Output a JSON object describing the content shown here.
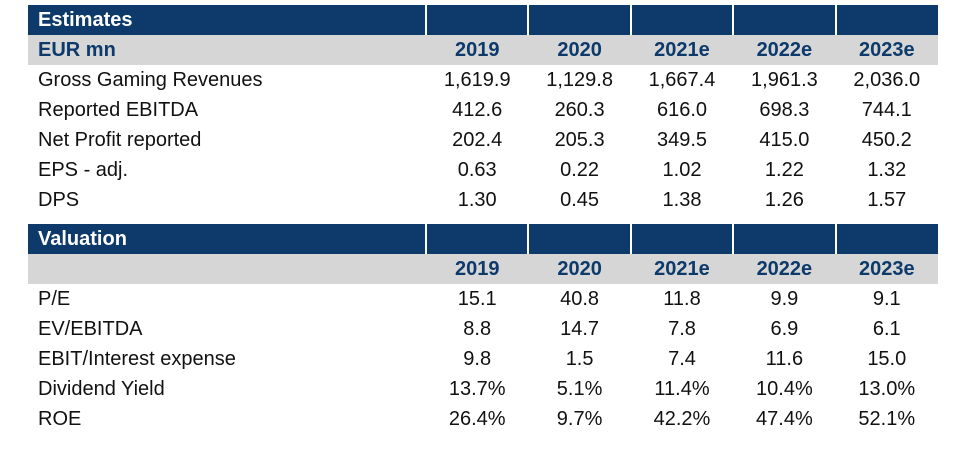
{
  "estimates": {
    "title": "Estimates",
    "header_label": "EUR mn",
    "years": [
      "2019",
      "2020",
      "2021e",
      "2022e",
      "2023e"
    ],
    "rows": [
      {
        "label": "Gross Gaming Revenues",
        "values": [
          "1,619.9",
          "1,129.8",
          "1,667.4",
          "1,961.3",
          "2,036.0"
        ]
      },
      {
        "label": "Reported EBITDA",
        "values": [
          "412.6",
          "260.3",
          "616.0",
          "698.3",
          "744.1"
        ]
      },
      {
        "label": "Net Profit reported",
        "values": [
          "202.4",
          "205.3",
          "349.5",
          "415.0",
          "450.2"
        ]
      },
      {
        "label": "EPS - adj.",
        "values": [
          "0.63",
          "0.22",
          "1.02",
          "1.22",
          "1.32"
        ]
      },
      {
        "label": "DPS",
        "values": [
          "1.30",
          "0.45",
          "1.38",
          "1.26",
          "1.57"
        ]
      }
    ]
  },
  "valuation": {
    "title": "Valuation",
    "header_label": "",
    "years": [
      "2019",
      "2020",
      "2021e",
      "2022e",
      "2023e"
    ],
    "rows": [
      {
        "label": "P/E",
        "values": [
          "15.1",
          "40.8",
          "11.8",
          "9.9",
          "9.1"
        ]
      },
      {
        "label": "EV/EBITDA",
        "values": [
          "8.8",
          "14.7",
          "7.8",
          "6.9",
          "6.1"
        ]
      },
      {
        "label": "EBIT/Interest expense",
        "values": [
          "9.8",
          "1.5",
          "7.4",
          "11.6",
          "15.0"
        ]
      },
      {
        "label": "Dividend Yield",
        "values": [
          "13.7%",
          "5.1%",
          "11.4%",
          "10.4%",
          "13.0%"
        ]
      },
      {
        "label": "ROE",
        "values": [
          "26.4%",
          "9.7%",
          "42.2%",
          "47.4%",
          "52.1%"
        ]
      }
    ]
  },
  "colors": {
    "title_bg": "#0d3a6b",
    "header_bg": "#d6d6d6",
    "header_text": "#0d3a6b"
  }
}
